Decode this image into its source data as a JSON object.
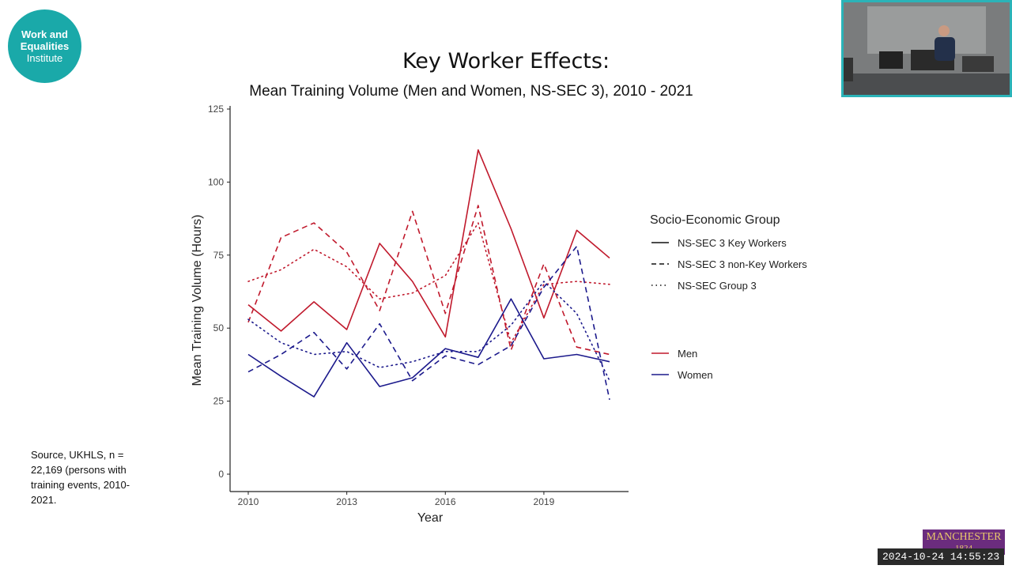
{
  "logo": {
    "line1": "Work and",
    "line2": "Equalities",
    "line3": "Institute"
  },
  "slide_title": "Key Worker Effects:",
  "source_note": "Source, UKHLS, n = 22,169 (persons with training events, 2010-2021.",
  "university_logo": {
    "name": "MANCHESTER",
    "year": "1824"
  },
  "timestamp": "2024-10-24 14:55:23",
  "colors": {
    "men": "#c0192c",
    "women": "#1c1a8c",
    "teal": "#1aa9a9"
  },
  "chart_data": {
    "type": "line",
    "title": "Mean Training Volume (Men and Women, NS-SEC 3), 2010 - 2021",
    "xlabel": "Year",
    "ylabel": "Mean Training Volume (Hours)",
    "x": [
      2010,
      2011,
      2012,
      2013,
      2014,
      2015,
      2016,
      2017,
      2018,
      2019,
      2020,
      2021
    ],
    "xticks": [
      2010,
      2013,
      2016,
      2019
    ],
    "yticks": [
      0,
      25,
      50,
      75,
      100,
      125
    ],
    "xlim": [
      2010,
      2021
    ],
    "ylim": [
      0,
      125
    ],
    "grid": false,
    "legend_placement": "right",
    "legend": {
      "group_title": "Socio-Economic Group",
      "linetypes": [
        {
          "label": "NS-SEC 3 Key Workers",
          "style": "solid"
        },
        {
          "label": "NS-SEC 3 non-Key Workers",
          "style": "dashed"
        },
        {
          "label": "NS-SEC Group 3",
          "style": "dotted"
        }
      ],
      "colors": [
        {
          "label": "Men",
          "color": "#c0192c"
        },
        {
          "label": "Women",
          "color": "#1c1a8c"
        }
      ]
    },
    "series": [
      {
        "sex": "Men",
        "group": "NS-SEC 3 Key Workers",
        "style": "solid",
        "color": "#c0192c",
        "values": [
          58,
          49,
          59,
          49.5,
          79,
          66,
          47,
          111,
          84,
          53.5,
          83.5,
          74
        ]
      },
      {
        "sex": "Men",
        "group": "NS-SEC 3 non-Key Workers",
        "style": "dashed",
        "color": "#c0192c",
        "values": [
          52,
          81,
          86,
          76,
          56,
          90,
          55,
          92,
          42.5,
          72,
          43.5,
          41
        ]
      },
      {
        "sex": "Men",
        "group": "NS-SEC Group 3",
        "style": "dotted",
        "color": "#c0192c",
        "values": [
          66,
          70,
          77,
          71,
          60,
          62,
          68,
          86,
          45,
          65,
          66,
          65
        ]
      },
      {
        "sex": "Women",
        "group": "NS-SEC 3 Key Workers",
        "style": "solid",
        "color": "#1c1a8c",
        "values": [
          41,
          33.5,
          26.5,
          45,
          30,
          33,
          43,
          40,
          60,
          39.5,
          41,
          38.5
        ]
      },
      {
        "sex": "Women",
        "group": "NS-SEC 3 non-Key Workers",
        "style": "dashed",
        "color": "#1c1a8c",
        "values": [
          35,
          41,
          48.5,
          36,
          51.5,
          32,
          40.5,
          37.5,
          44,
          64,
          78,
          25.5
        ]
      },
      {
        "sex": "Women",
        "group": "NS-SEC Group 3",
        "style": "dotted",
        "color": "#1c1a8c",
        "values": [
          53,
          45,
          41,
          42,
          36.5,
          38.5,
          42,
          42,
          51,
          66,
          55,
          32
        ]
      }
    ]
  }
}
